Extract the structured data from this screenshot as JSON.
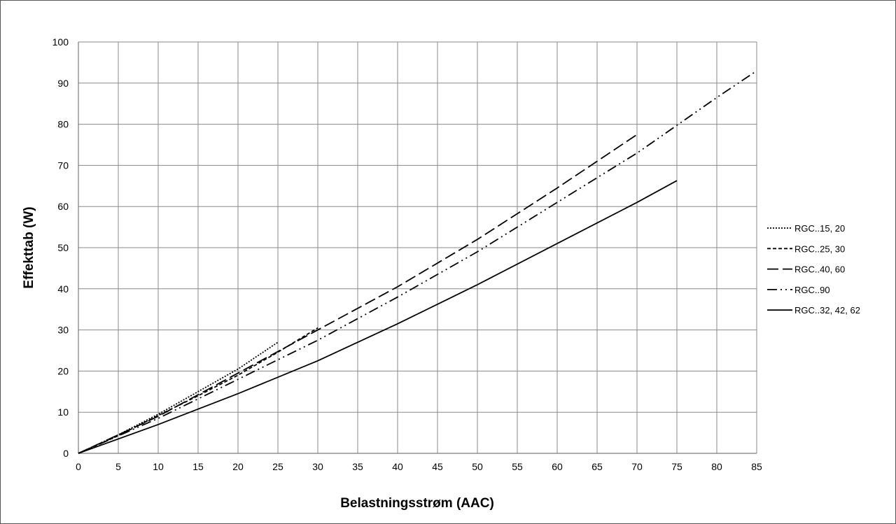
{
  "chart_data": {
    "type": "line",
    "title": "",
    "xlabel": "Belastningsstrøm (AAC)",
    "ylabel": "Effekttab (W)",
    "xlim": [
      0,
      85
    ],
    "ylim": [
      0,
      100
    ],
    "xticks": [
      0,
      5,
      10,
      15,
      20,
      25,
      30,
      35,
      40,
      45,
      50,
      55,
      60,
      65,
      70,
      75,
      80,
      85
    ],
    "yticks": [
      0,
      10,
      20,
      30,
      40,
      50,
      60,
      70,
      80,
      90,
      100
    ],
    "grid": true,
    "legend_position": "right",
    "series": [
      {
        "name": "RGC..15, 20",
        "dash": "dotted",
        "color": "#000000",
        "x": [
          0,
          5,
          10,
          15,
          20,
          25
        ],
        "y": [
          0,
          4.5,
          9.5,
          15,
          20.5,
          27
        ]
      },
      {
        "name": "RGC..25, 30",
        "dash": "short-dash",
        "color": "#000000",
        "x": [
          0,
          5,
          10,
          15,
          20,
          25,
          30
        ],
        "y": [
          0,
          4.3,
          9.2,
          14,
          19,
          24.6,
          30.5
        ]
      },
      {
        "name": "RGC..40, 60",
        "dash": "long-dash",
        "color": "#000000",
        "x": [
          0,
          10,
          20,
          30,
          40,
          50,
          60,
          70
        ],
        "y": [
          0,
          9,
          19.5,
          30,
          40.5,
          52,
          64.5,
          77.5
        ]
      },
      {
        "name": "RGC..90",
        "dash": "dash-dot-dot",
        "color": "#000000",
        "x": [
          0,
          10,
          20,
          30,
          40,
          50,
          60,
          70,
          80,
          85
        ],
        "y": [
          0,
          8.5,
          18,
          27.5,
          38,
          49,
          61,
          73,
          86.5,
          93
        ]
      },
      {
        "name": "RGC..32, 42, 62",
        "dash": "solid",
        "color": "#000000",
        "x": [
          0,
          10,
          20,
          30,
          40,
          50,
          60,
          70,
          75
        ],
        "y": [
          0,
          7,
          14.5,
          22.5,
          31.5,
          41,
          51,
          61,
          66.3
        ]
      }
    ]
  }
}
